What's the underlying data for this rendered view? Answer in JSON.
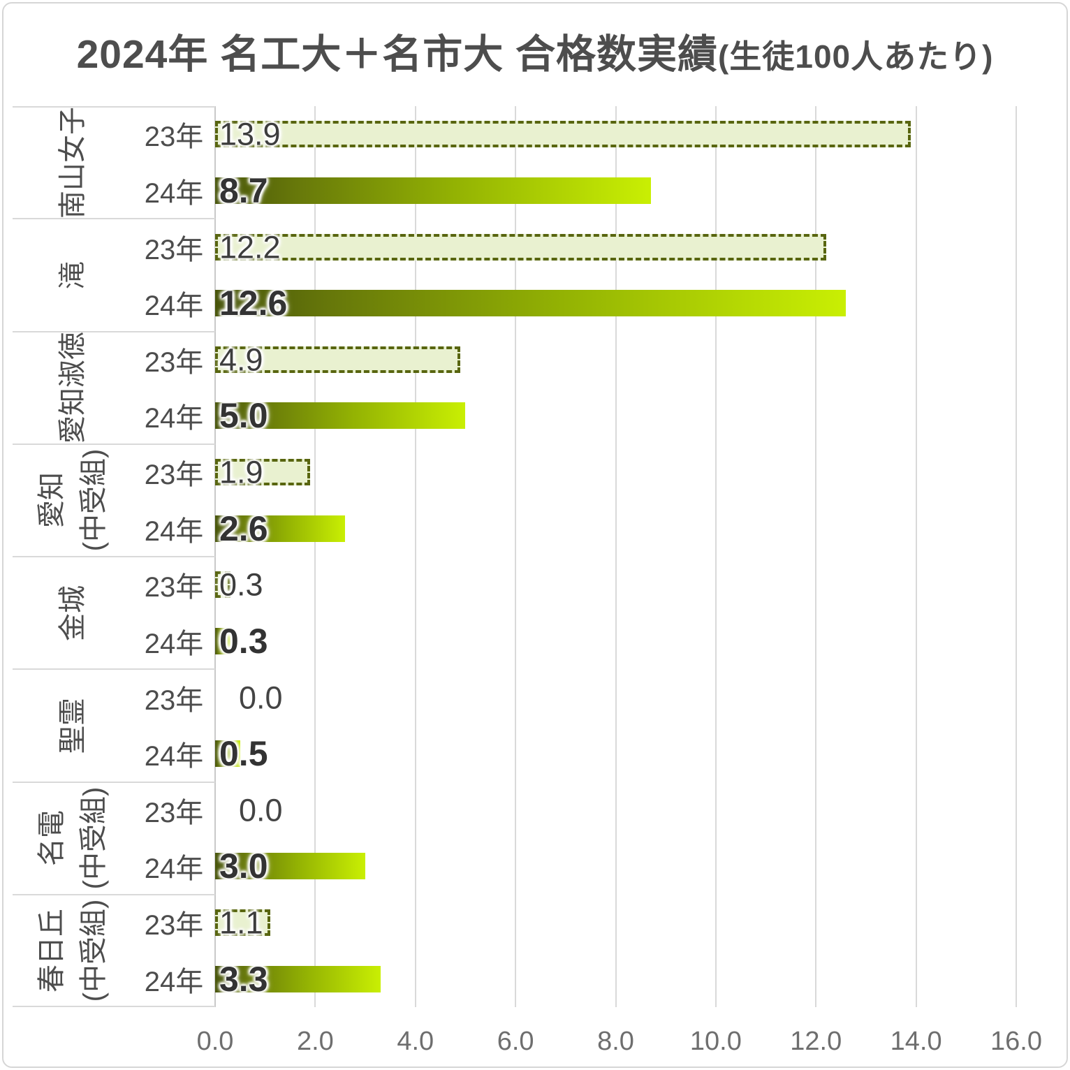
{
  "title": {
    "main": "2024年 名工大＋名市大 合格数実績",
    "suffix": "(生徒100人あたり)"
  },
  "x_axis": {
    "min": 0,
    "max": 16,
    "tick_step": 2,
    "ticks": [
      "0.0",
      "2.0",
      "4.0",
      "6.0",
      "8.0",
      "10.0",
      "12.0",
      "14.0",
      "16.0"
    ]
  },
  "groups": [
    {
      "school_lines": [
        "南山女子"
      ],
      "rows": [
        {
          "year": "23年",
          "value": 13.9,
          "label": "13.9",
          "style": "y23"
        },
        {
          "year": "24年",
          "value": 8.7,
          "label": "8.7",
          "style": "y24"
        }
      ]
    },
    {
      "school_lines": [
        "滝"
      ],
      "rows": [
        {
          "year": "23年",
          "value": 12.2,
          "label": "12.2",
          "style": "y23"
        },
        {
          "year": "24年",
          "value": 12.6,
          "label": "12.6",
          "style": "y24"
        }
      ]
    },
    {
      "school_lines": [
        "愛知淑徳"
      ],
      "rows": [
        {
          "year": "23年",
          "value": 4.9,
          "label": "4.9",
          "style": "y23"
        },
        {
          "year": "24年",
          "value": 5.0,
          "label": "5.0",
          "style": "y24"
        }
      ]
    },
    {
      "school_lines": [
        "愛知",
        "(中受組)"
      ],
      "rows": [
        {
          "year": "23年",
          "value": 1.9,
          "label": "1.9",
          "style": "y23"
        },
        {
          "year": "24年",
          "value": 2.6,
          "label": "2.6",
          "style": "y24"
        }
      ]
    },
    {
      "school_lines": [
        "金城"
      ],
      "rows": [
        {
          "year": "23年",
          "value": 0.3,
          "label": "0.3",
          "style": "y23"
        },
        {
          "year": "24年",
          "value": 0.3,
          "label": "0.3",
          "style": "y24"
        }
      ]
    },
    {
      "school_lines": [
        "聖霊"
      ],
      "rows": [
        {
          "year": "23年",
          "value": 0.0,
          "label": "0.0",
          "style": "y23"
        },
        {
          "year": "24年",
          "value": 0.5,
          "label": "0.5",
          "style": "y24"
        }
      ]
    },
    {
      "school_lines": [
        "名電",
        "(中受組)"
      ],
      "rows": [
        {
          "year": "23年",
          "value": 0.0,
          "label": "0.0",
          "style": "y23"
        },
        {
          "year": "24年",
          "value": 3.0,
          "label": "3.0",
          "style": "y24"
        }
      ]
    },
    {
      "school_lines": [
        "春日丘",
        "(中受組)"
      ],
      "rows": [
        {
          "year": "23年",
          "value": 1.1,
          "label": "1.1",
          "style": "y23"
        },
        {
          "year": "24年",
          "value": 3.3,
          "label": "3.3",
          "style": "y24"
        }
      ]
    }
  ],
  "colors": {
    "bar23_fill": "#e9f1d0",
    "bar23_dash_border": "#58650f",
    "bar24_gradient_start": "#47540a",
    "bar24_gradient_mid": "#93b203",
    "bar24_gradient_end": "#c9ef03",
    "gridline": "#d9d9d9",
    "title_text": "#4d4d4d",
    "axis_text": "#6e6e6e",
    "label_text": "#3d3d3d"
  },
  "chart_data": {
    "type": "bar",
    "orientation": "horizontal",
    "title": "2024年 名工大＋名市大 合格数実績(生徒100人あたり)",
    "categories": [
      "南山女子",
      "滝",
      "愛知淑徳",
      "愛知(中受組)",
      "金城",
      "聖霊",
      "名電(中受組)",
      "春日丘(中受組)"
    ],
    "series": [
      {
        "name": "23年",
        "values": [
          13.9,
          12.2,
          4.9,
          1.9,
          0.3,
          0.0,
          0.0,
          1.1
        ]
      },
      {
        "name": "24年",
        "values": [
          8.7,
          12.6,
          5.0,
          2.6,
          0.3,
          0.5,
          3.0,
          3.3
        ]
      }
    ],
    "xlabel": "",
    "ylabel": "",
    "xlim": [
      0,
      16
    ],
    "x_tick_step": 2,
    "grid": true,
    "legend_position": "none"
  }
}
